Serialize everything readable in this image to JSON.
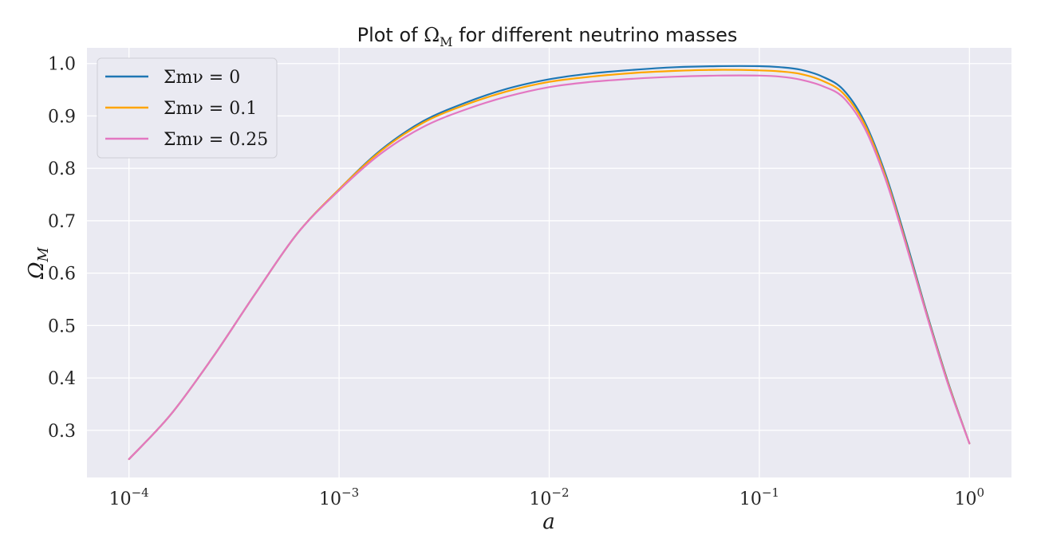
{
  "chart_data": {
    "type": "line",
    "title": "Plot of Ωₘ for different neutrino masses",
    "title_parts": {
      "prefix": "Plot of ",
      "symbol": "Ω",
      "subscript": "M",
      "suffix": " for different neutrino masses"
    },
    "xlabel": "a",
    "ylabel_symbol": "Ω",
    "ylabel_subscript": "M",
    "x_scale": "log",
    "xlim": [
      6.31e-05,
      1.585
    ],
    "ylim": [
      0.21,
      1.03
    ],
    "x_ticks": [
      {
        "value": 0.0001,
        "base": "10",
        "exp": "−4"
      },
      {
        "value": 0.001,
        "base": "10",
        "exp": "−3"
      },
      {
        "value": 0.01,
        "base": "10",
        "exp": "−2"
      },
      {
        "value": 0.1,
        "base": "10",
        "exp": "−1"
      },
      {
        "value": 1,
        "base": "10",
        "exp": "0"
      }
    ],
    "y_ticks": [
      {
        "value": 0.3,
        "label": "0.3"
      },
      {
        "value": 0.4,
        "label": "0.4"
      },
      {
        "value": 0.5,
        "label": "0.5"
      },
      {
        "value": 0.6,
        "label": "0.6"
      },
      {
        "value": 0.7,
        "label": "0.7"
      },
      {
        "value": 0.8,
        "label": "0.8"
      },
      {
        "value": 0.9,
        "label": "0.9"
      },
      {
        "value": 1.0,
        "label": "1.0"
      }
    ],
    "grid": true,
    "legend_position": "top-left",
    "x": [
      0.0001,
      0.000158,
      0.000251,
      0.000398,
      0.000631,
      0.001,
      0.00158,
      0.00251,
      0.00398,
      0.00631,
      0.01,
      0.0158,
      0.0251,
      0.0398,
      0.0631,
      0.1,
      0.126,
      0.158,
      0.2,
      0.251,
      0.316,
      0.398,
      0.501,
      0.631,
      0.794,
      1.0
    ],
    "series": [
      {
        "name": "Σmν = 0",
        "color": "#1f77b4",
        "values": [
          0.245,
          0.33,
          0.44,
          0.56,
          0.675,
          0.76,
          0.835,
          0.89,
          0.925,
          0.952,
          0.97,
          0.981,
          0.988,
          0.993,
          0.995,
          0.995,
          0.993,
          0.988,
          0.975,
          0.95,
          0.89,
          0.79,
          0.66,
          0.52,
          0.39,
          0.275
        ]
      },
      {
        "name": "Σmν = 0.1",
        "color": "#ffa500",
        "values": [
          0.245,
          0.33,
          0.44,
          0.56,
          0.675,
          0.76,
          0.833,
          0.887,
          0.921,
          0.947,
          0.965,
          0.975,
          0.982,
          0.986,
          0.988,
          0.987,
          0.985,
          0.98,
          0.967,
          0.943,
          0.885,
          0.785,
          0.655,
          0.517,
          0.388,
          0.275
        ]
      },
      {
        "name": "Σmν = 0.25",
        "color": "#e377c2",
        "values": [
          0.245,
          0.33,
          0.44,
          0.56,
          0.675,
          0.758,
          0.828,
          0.879,
          0.912,
          0.937,
          0.955,
          0.965,
          0.971,
          0.975,
          0.977,
          0.977,
          0.975,
          0.969,
          0.957,
          0.935,
          0.878,
          0.78,
          0.652,
          0.515,
          0.386,
          0.275
        ]
      }
    ]
  }
}
